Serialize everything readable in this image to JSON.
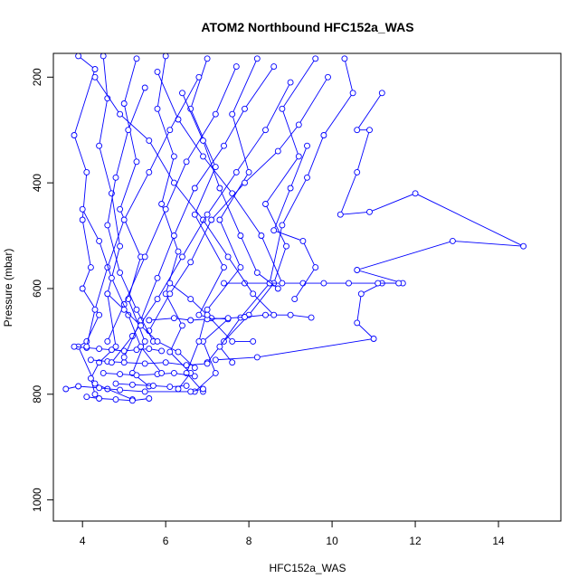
{
  "chart_data": {
    "type": "line",
    "title": "ATOM2 Northbound HFC152a_WAS",
    "xlabel": "HFC152a_WAS",
    "ylabel": "Pressure (mbar)",
    "xlim": [
      3.3,
      15.5
    ],
    "ylim": [
      1040,
      155
    ],
    "y_reversed": true,
    "xticks": [
      4,
      6,
      8,
      10,
      12,
      14
    ],
    "yticks": [
      200,
      400,
      600,
      800,
      1000
    ],
    "grid": false,
    "color": "#0000ff",
    "marker": "open-circle",
    "series": [
      {
        "points": [
          [
            3.9,
            160
          ],
          [
            4.3,
            185
          ],
          [
            3.8,
            310
          ],
          [
            4.1,
            380
          ],
          [
            4.0,
            470
          ],
          [
            4.2,
            560
          ],
          [
            4.0,
            600
          ],
          [
            4.4,
            650
          ],
          [
            4.1,
            700
          ],
          [
            3.9,
            710
          ],
          [
            4.3,
            780
          ],
          [
            4.6,
            790
          ],
          [
            5.2,
            810
          ]
        ]
      },
      {
        "points": [
          [
            4.5,
            160
          ],
          [
            4.6,
            240
          ],
          [
            4.4,
            330
          ],
          [
            4.7,
            420
          ],
          [
            4.9,
            520
          ],
          [
            4.6,
            610
          ],
          [
            4.8,
            710
          ],
          [
            4.4,
            740
          ],
          [
            4.2,
            770
          ],
          [
            4.3,
            800
          ]
        ]
      },
      {
        "points": [
          [
            5.3,
            165
          ],
          [
            5.0,
            250
          ],
          [
            5.3,
            360
          ],
          [
            4.9,
            450
          ],
          [
            5.4,
            540
          ],
          [
            5.1,
            620
          ],
          [
            5.5,
            700
          ],
          [
            5.2,
            760
          ],
          [
            5.6,
            785
          ]
        ]
      },
      {
        "points": [
          [
            6.0,
            160
          ],
          [
            5.8,
            260
          ],
          [
            6.2,
            350
          ],
          [
            5.9,
            440
          ],
          [
            6.3,
            530
          ],
          [
            6.0,
            610
          ],
          [
            6.4,
            670
          ],
          [
            6.1,
            720
          ],
          [
            6.6,
            760
          ],
          [
            6.3,
            790
          ]
        ]
      },
      {
        "points": [
          [
            7.0,
            165
          ],
          [
            6.6,
            260
          ],
          [
            7.2,
            370
          ],
          [
            6.7,
            460
          ],
          [
            7.4,
            560
          ],
          [
            6.8,
            650
          ],
          [
            7.1,
            656
          ],
          [
            7.5,
            658
          ],
          [
            6.9,
            700
          ],
          [
            7.2,
            760
          ],
          [
            6.7,
            795
          ]
        ]
      },
      {
        "points": [
          [
            8.2,
            165
          ],
          [
            7.6,
            270
          ],
          [
            8.0,
            380
          ],
          [
            7.3,
            470
          ],
          [
            7.8,
            560
          ],
          [
            7.0,
            640
          ],
          [
            6.8,
            700
          ],
          [
            6.5,
            760
          ],
          [
            6.9,
            795
          ]
        ]
      },
      {
        "points": [
          [
            9.6,
            165
          ],
          [
            8.8,
            260
          ],
          [
            9.2,
            350
          ],
          [
            8.4,
            440
          ],
          [
            8.9,
            520
          ],
          [
            8.6,
            590
          ],
          [
            8.0,
            650
          ],
          [
            7.4,
            700
          ],
          [
            7.0,
            740
          ]
        ]
      },
      {
        "points": [
          [
            10.3,
            165
          ],
          [
            10.5,
            230
          ],
          [
            9.8,
            310
          ],
          [
            9.4,
            390
          ],
          [
            8.8,
            480
          ],
          [
            8.5,
            590
          ],
          [
            7.8,
            655
          ],
          [
            7.3,
            710
          ],
          [
            7.6,
            740
          ]
        ]
      },
      {
        "points": [
          [
            11.2,
            230
          ],
          [
            10.6,
            300
          ],
          [
            10.9,
            300
          ],
          [
            10.6,
            380
          ],
          [
            10.2,
            460
          ],
          [
            10.9,
            455
          ],
          [
            12.0,
            420
          ],
          [
            14.6,
            520
          ],
          [
            12.9,
            510
          ],
          [
            10.6,
            565
          ],
          [
            11.7,
            590
          ],
          [
            11.2,
            590
          ],
          [
            10.7,
            610
          ],
          [
            10.6,
            665
          ],
          [
            11.0,
            695
          ],
          [
            8.2,
            730
          ],
          [
            7.2,
            735
          ]
        ]
      },
      {
        "points": [
          [
            7.4,
            590
          ],
          [
            7.9,
            590
          ],
          [
            8.5,
            590
          ],
          [
            9.3,
            590
          ],
          [
            9.8,
            590
          ],
          [
            10.4,
            590
          ],
          [
            11.1,
            590
          ],
          [
            11.6,
            590
          ]
        ]
      },
      {
        "points": [
          [
            9.5,
            655
          ],
          [
            9.0,
            650
          ],
          [
            8.4,
            650
          ],
          [
            7.9,
            654
          ],
          [
            7.5,
            656
          ],
          [
            7.0,
            658
          ],
          [
            6.6,
            660
          ],
          [
            6.2,
            656
          ],
          [
            5.6,
            660
          ]
        ]
      },
      {
        "points": [
          [
            3.8,
            710
          ],
          [
            4.1,
            712
          ],
          [
            4.4,
            714
          ],
          [
            4.7,
            716
          ],
          [
            5.0,
            718
          ],
          [
            5.3,
            716
          ],
          [
            5.6,
            714
          ],
          [
            5.9,
            718
          ]
        ]
      },
      {
        "points": [
          [
            4.2,
            735
          ],
          [
            4.6,
            738
          ],
          [
            5.0,
            740
          ],
          [
            5.5,
            742
          ],
          [
            6.0,
            740
          ],
          [
            6.5,
            745
          ],
          [
            7.0,
            742
          ]
        ]
      },
      {
        "points": [
          [
            4.5,
            760
          ],
          [
            4.9,
            762
          ],
          [
            5.3,
            764
          ],
          [
            5.8,
            762
          ],
          [
            6.2,
            760
          ],
          [
            6.7,
            766
          ]
        ]
      },
      {
        "points": [
          [
            4.8,
            780
          ],
          [
            5.2,
            782
          ],
          [
            5.7,
            784
          ],
          [
            6.1,
            786
          ],
          [
            6.5,
            784
          ]
        ]
      },
      {
        "points": [
          [
            4.1,
            805
          ],
          [
            4.4,
            808
          ],
          [
            4.8,
            810
          ],
          [
            5.2,
            812
          ],
          [
            5.6,
            808
          ]
        ]
      },
      {
        "points": [
          [
            3.6,
            790
          ],
          [
            3.9,
            785
          ],
          [
            4.4,
            788
          ],
          [
            4.9,
            792
          ],
          [
            5.5,
            795
          ],
          [
            6.6,
            795
          ],
          [
            6.9,
            790
          ]
        ]
      },
      {
        "points": [
          [
            4.3,
            200
          ],
          [
            4.9,
            270
          ],
          [
            5.6,
            320
          ],
          [
            6.2,
            400
          ],
          [
            6.9,
            470
          ],
          [
            7.5,
            540
          ],
          [
            8.1,
            610
          ],
          [
            8.6,
            650
          ]
        ]
      },
      {
        "points": [
          [
            5.8,
            190
          ],
          [
            6.3,
            280
          ],
          [
            6.9,
            350
          ],
          [
            7.6,
            420
          ],
          [
            8.3,
            500
          ],
          [
            8.8,
            590
          ]
        ]
      },
      {
        "points": [
          [
            9.0,
            210
          ],
          [
            8.4,
            300
          ],
          [
            7.7,
            380
          ],
          [
            7.0,
            460
          ],
          [
            6.4,
            540
          ],
          [
            5.8,
            620
          ],
          [
            5.2,
            690
          ],
          [
            4.7,
            740
          ]
        ]
      },
      {
        "points": [
          [
            9.9,
            200
          ],
          [
            9.2,
            290
          ],
          [
            8.7,
            340
          ],
          [
            7.9,
            400
          ],
          [
            7.1,
            470
          ],
          [
            6.6,
            550
          ],
          [
            6.1,
            610
          ],
          [
            5.6,
            680
          ]
        ]
      },
      {
        "points": [
          [
            6.8,
            200
          ],
          [
            6.1,
            300
          ],
          [
            5.6,
            380
          ],
          [
            5.0,
            470
          ],
          [
            4.6,
            560
          ],
          [
            4.3,
            640
          ],
          [
            4.1,
            710
          ]
        ]
      },
      {
        "points": [
          [
            7.7,
            180
          ],
          [
            7.2,
            270
          ],
          [
            6.5,
            360
          ],
          [
            6.0,
            450
          ],
          [
            5.5,
            540
          ],
          [
            5.0,
            630
          ],
          [
            4.6,
            700
          ]
        ]
      },
      {
        "points": [
          [
            8.6,
            180
          ],
          [
            7.9,
            260
          ],
          [
            7.4,
            330
          ],
          [
            6.7,
            410
          ],
          [
            6.2,
            500
          ],
          [
            5.8,
            580
          ],
          [
            5.4,
            660
          ],
          [
            5.0,
            730
          ]
        ]
      },
      {
        "points": [
          [
            4.0,
            450
          ],
          [
            4.4,
            510
          ],
          [
            4.7,
            580
          ],
          [
            5.1,
            650
          ],
          [
            5.4,
            710
          ],
          [
            5.9,
            760
          ]
        ]
      },
      {
        "points": [
          [
            5.5,
            220
          ],
          [
            5.1,
            300
          ],
          [
            4.8,
            390
          ],
          [
            4.6,
            480
          ],
          [
            4.9,
            570
          ],
          [
            5.3,
            640
          ],
          [
            5.7,
            700
          ]
        ]
      },
      {
        "points": [
          [
            6.4,
            230
          ],
          [
            6.9,
            320
          ],
          [
            7.3,
            410
          ],
          [
            7.8,
            500
          ],
          [
            8.2,
            570
          ],
          [
            8.7,
            600
          ]
        ]
      },
      {
        "points": [
          [
            9.4,
            330
          ],
          [
            9.0,
            410
          ],
          [
            8.6,
            490
          ],
          [
            9.3,
            510
          ],
          [
            9.6,
            560
          ],
          [
            9.1,
            620
          ]
        ]
      },
      {
        "points": [
          [
            6.1,
            590
          ],
          [
            6.6,
            620
          ],
          [
            7.0,
            650
          ],
          [
            7.6,
            700
          ],
          [
            8.1,
            700
          ]
        ]
      },
      {
        "points": [
          [
            4.6,
            610
          ],
          [
            5.0,
            640
          ],
          [
            5.4,
            670
          ],
          [
            5.8,
            700
          ],
          [
            6.3,
            720
          ],
          [
            6.7,
            750
          ]
        ]
      }
    ]
  }
}
